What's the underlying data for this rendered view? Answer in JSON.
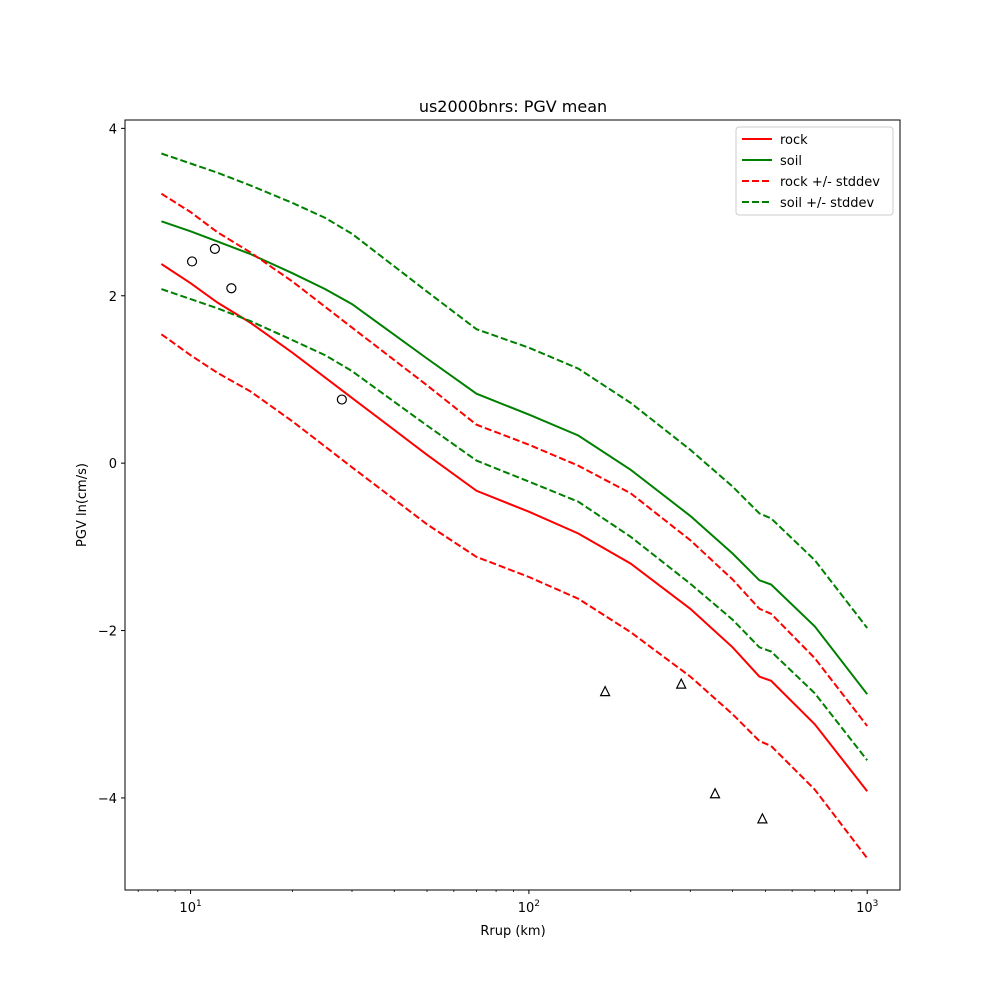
{
  "chart_data": {
    "type": "line",
    "title": "us2000bnrs: PGV mean",
    "xlabel": "Rrup (km)",
    "ylabel": "PGV ln(cm/s)",
    "xscale": "log",
    "xlim": [
      6.4,
      1250
    ],
    "ylim": [
      -5.1,
      4.1
    ],
    "x_ticks": [
      {
        "value": 10,
        "base": "10",
        "exp": "1"
      },
      {
        "value": 100,
        "base": "10",
        "exp": "2"
      },
      {
        "value": 1000,
        "base": "10",
        "exp": "3"
      }
    ],
    "y_ticks": [
      {
        "value": 4,
        "label": "4"
      },
      {
        "value": 2,
        "label": "2"
      },
      {
        "value": 0,
        "label": "0"
      },
      {
        "value": -2,
        "label": "−2"
      },
      {
        "value": -4,
        "label": "−4"
      }
    ],
    "grid": false,
    "legend_position": "top-right",
    "series": [
      {
        "name": "rock",
        "color": "#ff0000",
        "style": "solid",
        "x": [
          8.2,
          10,
          12,
          15,
          20,
          30,
          50,
          70,
          100,
          140,
          200,
          300,
          400,
          480,
          520,
          700,
          1000
        ],
        "y": [
          2.38,
          2.15,
          1.92,
          1.68,
          1.32,
          0.78,
          0.1,
          -0.33,
          -0.58,
          -0.84,
          -1.2,
          -1.74,
          -2.2,
          -2.55,
          -2.6,
          -3.12,
          -3.92
        ]
      },
      {
        "name": "soil",
        "color": "#008000",
        "style": "solid",
        "x": [
          8.2,
          10,
          12,
          15,
          20,
          25,
          30,
          50,
          70,
          100,
          140,
          200,
          300,
          400,
          480,
          520,
          700,
          1000
        ],
        "y": [
          2.89,
          2.77,
          2.65,
          2.5,
          2.27,
          2.08,
          1.9,
          1.25,
          0.83,
          0.58,
          0.33,
          -0.08,
          -0.63,
          -1.08,
          -1.4,
          -1.45,
          -1.95,
          -2.76
        ]
      },
      {
        "name": "rock +/- stddev",
        "color": "#ff0000",
        "style": "dashed",
        "x": [
          8.2,
          10,
          12,
          15,
          20,
          30,
          50,
          70,
          100,
          140,
          200,
          300,
          400,
          480,
          520,
          700,
          1000
        ],
        "y": [
          3.22,
          3.0,
          2.76,
          2.52,
          2.17,
          1.62,
          0.93,
          0.46,
          0.22,
          -0.03,
          -0.36,
          -0.92,
          -1.39,
          -1.74,
          -1.8,
          -2.33,
          -3.14
        ]
      },
      {
        "name": "rock +/- stddev (lower)",
        "color": "#ff0000",
        "style": "dashed",
        "x": [
          8.2,
          10,
          12,
          15,
          20,
          30,
          50,
          70,
          100,
          140,
          200,
          300,
          400,
          480,
          520,
          700,
          1000
        ],
        "y": [
          1.54,
          1.29,
          1.08,
          0.86,
          0.5,
          -0.05,
          -0.73,
          -1.12,
          -1.36,
          -1.62,
          -2.02,
          -2.55,
          -3.0,
          -3.32,
          -3.38,
          -3.9,
          -4.72
        ]
      },
      {
        "name": "soil +/- stddev",
        "color": "#008000",
        "style": "dashed",
        "x": [
          8.2,
          10,
          12,
          15,
          20,
          25,
          30,
          50,
          70,
          100,
          140,
          200,
          300,
          400,
          480,
          520,
          700,
          1000
        ],
        "y": [
          3.7,
          3.58,
          3.47,
          3.32,
          3.11,
          2.93,
          2.74,
          2.05,
          1.6,
          1.38,
          1.13,
          0.72,
          0.16,
          -0.28,
          -0.6,
          -0.66,
          -1.16,
          -1.97
        ]
      },
      {
        "name": "soil +/- stddev (lower)",
        "color": "#008000",
        "style": "dashed",
        "x": [
          8.2,
          10,
          12,
          15,
          20,
          25,
          30,
          50,
          70,
          100,
          140,
          200,
          300,
          400,
          480,
          520,
          700,
          1000
        ],
        "y": [
          2.08,
          1.96,
          1.85,
          1.7,
          1.47,
          1.29,
          1.1,
          0.45,
          0.03,
          -0.22,
          -0.46,
          -0.88,
          -1.44,
          -1.87,
          -2.2,
          -2.25,
          -2.75,
          -3.55
        ]
      }
    ],
    "markers": [
      {
        "shape": "circle",
        "points": [
          {
            "x": 10.1,
            "y": 2.41
          },
          {
            "x": 11.8,
            "y": 2.56
          },
          {
            "x": 13.2,
            "y": 2.09
          },
          {
            "x": 28,
            "y": 0.76
          }
        ]
      },
      {
        "shape": "triangle",
        "points": [
          {
            "x": 168,
            "y": -2.73
          },
          {
            "x": 282,
            "y": -2.64
          },
          {
            "x": 355,
            "y": -3.95
          },
          {
            "x": 490,
            "y": -4.25
          }
        ]
      }
    ],
    "legend": [
      {
        "label": "rock",
        "color": "#ff0000",
        "style": "solid"
      },
      {
        "label": "soil",
        "color": "#008000",
        "style": "solid"
      },
      {
        "label": "rock +/- stddev",
        "color": "#ff0000",
        "style": "dashed"
      },
      {
        "label": "soil +/- stddev",
        "color": "#008000",
        "style": "dashed"
      }
    ]
  }
}
